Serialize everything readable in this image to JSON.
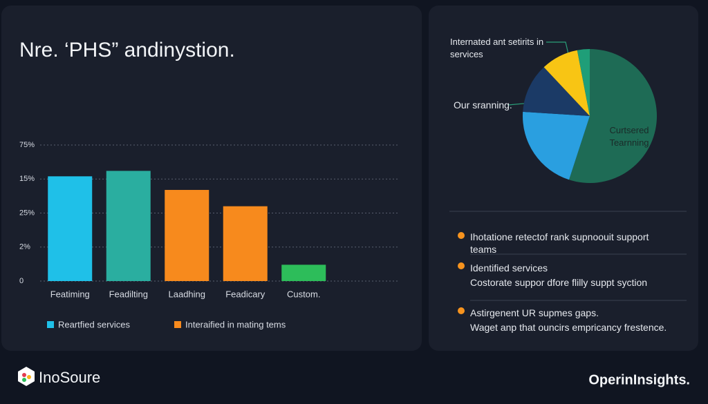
{
  "chart_data": [
    {
      "type": "bar",
      "title": "Nre. ‘PHS” andinystion.",
      "categories": [
        "Featiming",
        "Feadilting",
        "Laadhing",
        "Feadicary",
        "Custom."
      ],
      "values": [
        77,
        81,
        67,
        55,
        12
      ],
      "colors": [
        "#1fc0e8",
        "#2aaea0",
        "#f78a1d",
        "#f78a1d",
        "#2dbd5a"
      ],
      "ylim": [
        0,
        100
      ],
      "yticks": [
        0,
        {
          "value": 25,
          "label": "2%"
        },
        {
          "value": 50,
          "label": "25%"
        },
        {
          "value": 75,
          "label": "15%"
        },
        {
          "value": 100,
          "label": "75%"
        }
      ],
      "grid": true,
      "legend": [
        {
          "name": "Reartfied services",
          "color": "#1fc0e8"
        },
        {
          "name": "Interaified in mating tems",
          "color": "#f78a1d"
        }
      ]
    },
    {
      "type": "pie",
      "categories": [
        "Curtsered Tearnning",
        null,
        "Our sranning.",
        "Internated ant setirits in services",
        null
      ],
      "values": [
        55,
        21,
        12,
        9,
        3
      ],
      "colors": [
        "#1e6b55",
        "#2a9fe0",
        "#1b3a66",
        "#f8c514",
        "#1f9e78"
      ]
    }
  ],
  "list": [
    {
      "title": "Ihotatione retectof rank supnoouit support teams"
    },
    {
      "title": "Identified services",
      "text": "Costorate suppor dfore flilly suppt syction"
    },
    {
      "title": "Astirgenent UR supmes gaps.",
      "text": "Waget anp that ouncirs empricancy frestence."
    }
  ],
  "brand": "InoSoure",
  "footer": "OperinInsights."
}
